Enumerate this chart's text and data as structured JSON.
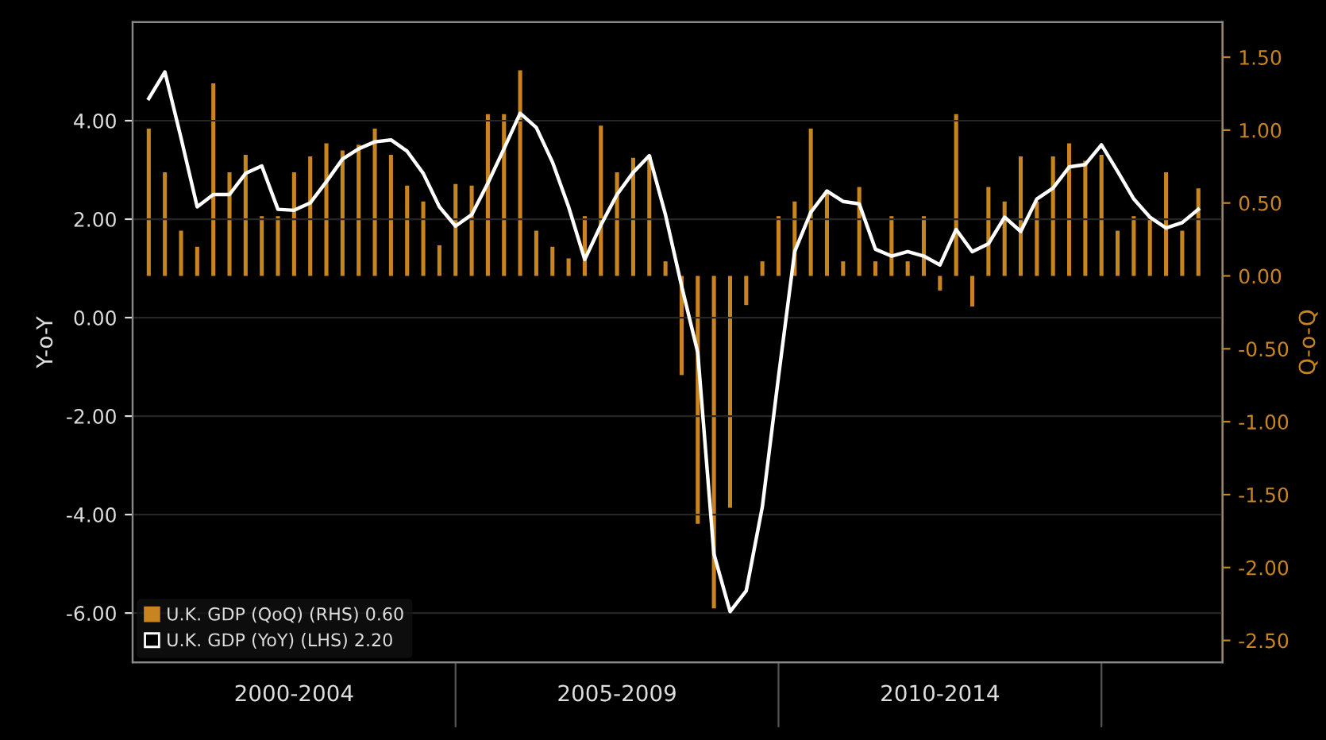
{
  "chart_data": {
    "type": "bar",
    "ylabel": "Y-o-Y",
    "y2label": "Q-o-Q",
    "categories": [
      null,
      null,
      null,
      null,
      null,
      null,
      null,
      null,
      null,
      "2000-2004",
      null,
      null,
      null,
      null,
      null,
      null,
      null,
      null,
      null,
      null,
      null,
      null,
      null,
      null,
      null,
      null,
      null,
      null,
      null,
      "2005-2009",
      null,
      null,
      null,
      null,
      null,
      null,
      null,
      null,
      null,
      null,
      null,
      null,
      null,
      null,
      null,
      null,
      null,
      null,
      null,
      "2010-2014",
      null,
      null,
      null,
      null,
      null,
      null,
      null,
      null,
      null,
      null,
      null,
      null,
      null,
      null,
      null,
      null
    ],
    "series": [
      {
        "name": "U.K. GDP (QoQ) (RHS) 0.60",
        "axis": "y2",
        "color": "#c8841e",
        "values": [
          1.01,
          0.71,
          0.31,
          0.2,
          1.32,
          0.71,
          0.83,
          0.41,
          0.41,
          0.71,
          0.82,
          0.91,
          0.86,
          0.9,
          1.01,
          0.83,
          0.62,
          0.51,
          0.21,
          0.63,
          0.62,
          1.11,
          1.11,
          1.41,
          0.31,
          0.2,
          0.12,
          0.41,
          1.03,
          0.71,
          0.81,
          0.83,
          0.1,
          -0.68,
          -1.7,
          -2.28,
          -1.59,
          -0.2,
          0.1,
          0.41,
          0.51,
          1.01,
          0.59,
          0.1,
          0.61,
          0.1,
          0.41,
          0.1,
          0.41,
          -0.1,
          1.11,
          -0.21,
          0.61,
          0.51,
          0.82,
          0.51,
          0.82,
          0.91,
          0.79,
          0.83,
          0.31,
          0.41,
          0.41,
          0.71,
          0.31,
          0.6
        ]
      },
      {
        "name": "U.K. GDP (YoY) (LHS) 2.20",
        "type": "line",
        "color": "#ffffff",
        "values": [
          4.45,
          4.99,
          3.65,
          2.25,
          2.5,
          2.5,
          2.93,
          3.08,
          2.2,
          2.18,
          2.33,
          2.76,
          3.22,
          3.43,
          3.57,
          3.61,
          3.38,
          2.93,
          2.25,
          1.86,
          2.09,
          2.73,
          3.43,
          4.15,
          3.86,
          3.16,
          2.25,
          1.18,
          1.88,
          2.5,
          2.95,
          3.29,
          2.09,
          0.64,
          -0.71,
          -4.8,
          -5.97,
          -5.55,
          -3.84,
          -1.2,
          1.34,
          2.14,
          2.57,
          2.36,
          2.31,
          1.39,
          1.25,
          1.34,
          1.25,
          1.07,
          1.79,
          1.34,
          1.5,
          2.04,
          1.75,
          2.41,
          2.63,
          3.06,
          3.11,
          3.51,
          2.97,
          2.41,
          2.04,
          1.82,
          1.93,
          2.2
        ]
      }
    ],
    "ylim": [
      -7,
      6
    ],
    "yticks": [
      {
        "value": -6,
        "label": "-6.00"
      },
      {
        "value": -4,
        "label": "-4.00"
      },
      {
        "value": -2,
        "label": "-2.00"
      },
      {
        "value": 0,
        "label": "0.00"
      },
      {
        "value": 2,
        "label": "2.00"
      },
      {
        "value": 4,
        "label": "4.00"
      }
    ],
    "y2lim": [
      -2.65,
      1.74
    ],
    "y2ticks": [
      {
        "value": -2.5,
        "label": "-2.50"
      },
      {
        "value": -2,
        "label": "-2.00"
      },
      {
        "value": -1.5,
        "label": "-1.50"
      },
      {
        "value": -1,
        "label": "-1.00"
      },
      {
        "value": -0.5,
        "label": "-0.50"
      },
      {
        "value": 0,
        "label": "0.00"
      },
      {
        "value": 0.5,
        "label": "0.50"
      },
      {
        "value": 1,
        "label": "1.00"
      },
      {
        "value": 1.5,
        "label": "1.50"
      }
    ],
    "grid": "y",
    "legend": "bottom left",
    "line_style": "solid",
    "marker": "none"
  }
}
